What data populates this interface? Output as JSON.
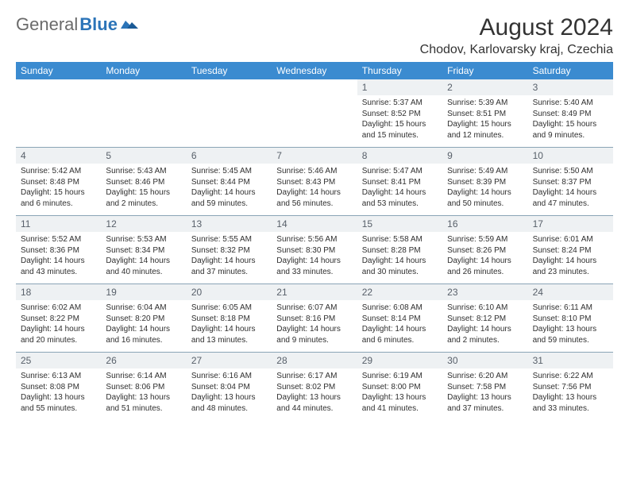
{
  "brand": {
    "part1": "General",
    "part2": "Blue"
  },
  "header": {
    "month_title": "August 2024",
    "location": "Chodov, Karlovarsky kraj, Czechia"
  },
  "calendar": {
    "dow": [
      "Sunday",
      "Monday",
      "Tuesday",
      "Wednesday",
      "Thursday",
      "Friday",
      "Saturday"
    ],
    "header_bg": "#3b8bd0",
    "header_fg": "#ffffff",
    "daynum_bg": "#eef1f3",
    "border_color": "#8aa4b6",
    "weeks": [
      [
        null,
        null,
        null,
        null,
        {
          "n": "1",
          "sr": "5:37 AM",
          "ss": "8:52 PM",
          "dl": "15 hours and 15 minutes."
        },
        {
          "n": "2",
          "sr": "5:39 AM",
          "ss": "8:51 PM",
          "dl": "15 hours and 12 minutes."
        },
        {
          "n": "3",
          "sr": "5:40 AM",
          "ss": "8:49 PM",
          "dl": "15 hours and 9 minutes."
        }
      ],
      [
        {
          "n": "4",
          "sr": "5:42 AM",
          "ss": "8:48 PM",
          "dl": "15 hours and 6 minutes."
        },
        {
          "n": "5",
          "sr": "5:43 AM",
          "ss": "8:46 PM",
          "dl": "15 hours and 2 minutes."
        },
        {
          "n": "6",
          "sr": "5:45 AM",
          "ss": "8:44 PM",
          "dl": "14 hours and 59 minutes."
        },
        {
          "n": "7",
          "sr": "5:46 AM",
          "ss": "8:43 PM",
          "dl": "14 hours and 56 minutes."
        },
        {
          "n": "8",
          "sr": "5:47 AM",
          "ss": "8:41 PM",
          "dl": "14 hours and 53 minutes."
        },
        {
          "n": "9",
          "sr": "5:49 AM",
          "ss": "8:39 PM",
          "dl": "14 hours and 50 minutes."
        },
        {
          "n": "10",
          "sr": "5:50 AM",
          "ss": "8:37 PM",
          "dl": "14 hours and 47 minutes."
        }
      ],
      [
        {
          "n": "11",
          "sr": "5:52 AM",
          "ss": "8:36 PM",
          "dl": "14 hours and 43 minutes."
        },
        {
          "n": "12",
          "sr": "5:53 AM",
          "ss": "8:34 PM",
          "dl": "14 hours and 40 minutes."
        },
        {
          "n": "13",
          "sr": "5:55 AM",
          "ss": "8:32 PM",
          "dl": "14 hours and 37 minutes."
        },
        {
          "n": "14",
          "sr": "5:56 AM",
          "ss": "8:30 PM",
          "dl": "14 hours and 33 minutes."
        },
        {
          "n": "15",
          "sr": "5:58 AM",
          "ss": "8:28 PM",
          "dl": "14 hours and 30 minutes."
        },
        {
          "n": "16",
          "sr": "5:59 AM",
          "ss": "8:26 PM",
          "dl": "14 hours and 26 minutes."
        },
        {
          "n": "17",
          "sr": "6:01 AM",
          "ss": "8:24 PM",
          "dl": "14 hours and 23 minutes."
        }
      ],
      [
        {
          "n": "18",
          "sr": "6:02 AM",
          "ss": "8:22 PM",
          "dl": "14 hours and 20 minutes."
        },
        {
          "n": "19",
          "sr": "6:04 AM",
          "ss": "8:20 PM",
          "dl": "14 hours and 16 minutes."
        },
        {
          "n": "20",
          "sr": "6:05 AM",
          "ss": "8:18 PM",
          "dl": "14 hours and 13 minutes."
        },
        {
          "n": "21",
          "sr": "6:07 AM",
          "ss": "8:16 PM",
          "dl": "14 hours and 9 minutes."
        },
        {
          "n": "22",
          "sr": "6:08 AM",
          "ss": "8:14 PM",
          "dl": "14 hours and 6 minutes."
        },
        {
          "n": "23",
          "sr": "6:10 AM",
          "ss": "8:12 PM",
          "dl": "14 hours and 2 minutes."
        },
        {
          "n": "24",
          "sr": "6:11 AM",
          "ss": "8:10 PM",
          "dl": "13 hours and 59 minutes."
        }
      ],
      [
        {
          "n": "25",
          "sr": "6:13 AM",
          "ss": "8:08 PM",
          "dl": "13 hours and 55 minutes."
        },
        {
          "n": "26",
          "sr": "6:14 AM",
          "ss": "8:06 PM",
          "dl": "13 hours and 51 minutes."
        },
        {
          "n": "27",
          "sr": "6:16 AM",
          "ss": "8:04 PM",
          "dl": "13 hours and 48 minutes."
        },
        {
          "n": "28",
          "sr": "6:17 AM",
          "ss": "8:02 PM",
          "dl": "13 hours and 44 minutes."
        },
        {
          "n": "29",
          "sr": "6:19 AM",
          "ss": "8:00 PM",
          "dl": "13 hours and 41 minutes."
        },
        {
          "n": "30",
          "sr": "6:20 AM",
          "ss": "7:58 PM",
          "dl": "13 hours and 37 minutes."
        },
        {
          "n": "31",
          "sr": "6:22 AM",
          "ss": "7:56 PM",
          "dl": "13 hours and 33 minutes."
        }
      ]
    ],
    "labels": {
      "sunrise": "Sunrise: ",
      "sunset": "Sunset: ",
      "daylight": "Daylight: "
    }
  }
}
